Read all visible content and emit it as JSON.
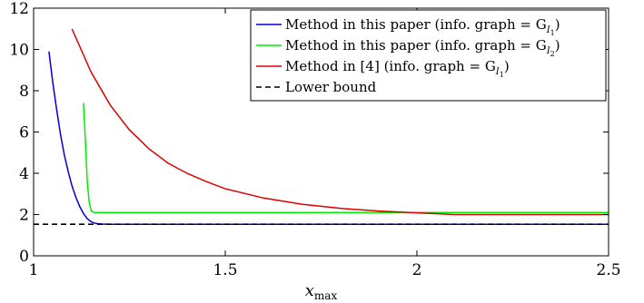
{
  "chart_data": {
    "type": "line",
    "title": "",
    "xlabel": "x",
    "xlabel_subscript": "max",
    "ylabel": "",
    "xlim": [
      1,
      2.5
    ],
    "ylim": [
      0,
      12
    ],
    "xticks": [
      1,
      1.5,
      2,
      2.5
    ],
    "xtick_labels": [
      "1",
      "1.5",
      "2",
      "2.5"
    ],
    "yticks": [
      0,
      2,
      4,
      6,
      8,
      10,
      12
    ],
    "ytick_labels": [
      "0",
      "2",
      "4",
      "6",
      "8",
      "10",
      "12"
    ],
    "grid": false,
    "legend_position": "top-right",
    "series": [
      {
        "name": "Method in this paper (info. graph = G_{I_1})",
        "legend_main": "Method in this paper (info. graph = G",
        "legend_sub": "I",
        "legend_subsub": "1",
        "legend_end": ")",
        "color": "#0000dd",
        "style": "solid",
        "x": [
          1.04,
          1.05,
          1.06,
          1.07,
          1.08,
          1.09,
          1.1,
          1.11,
          1.12,
          1.13,
          1.14,
          1.15,
          1.16,
          1.17,
          1.18,
          1.2,
          1.25,
          1.3,
          1.5,
          2.0,
          2.5
        ],
        "y": [
          9.9,
          8.4,
          7.1,
          5.9,
          4.9,
          4.1,
          3.4,
          2.85,
          2.4,
          2.05,
          1.8,
          1.65,
          1.58,
          1.55,
          1.54,
          1.53,
          1.53,
          1.53,
          1.53,
          1.53,
          1.53
        ]
      },
      {
        "name": "Method in this paper (info. graph = G_{I_2})",
        "legend_main": "Method in this paper (info. graph = G",
        "legend_sub": "I",
        "legend_subsub": "2",
        "legend_end": ")",
        "color": "#00ee00",
        "style": "solid",
        "x": [
          1.13,
          1.135,
          1.14,
          1.145,
          1.15,
          1.155,
          1.16,
          1.17,
          1.2,
          1.5,
          2.0,
          2.5
        ],
        "y": [
          7.4,
          5.6,
          3.6,
          2.6,
          2.2,
          2.12,
          2.1,
          2.1,
          2.1,
          2.1,
          2.1,
          2.1
        ]
      },
      {
        "name": "Method in [4] (info. graph = G_{I_1})",
        "legend_main": "Method in [4] (info. graph = G",
        "legend_sub": "I",
        "legend_subsub": "1",
        "legend_end": ")",
        "color": "#dd0000",
        "style": "solid",
        "x": [
          1.1,
          1.15,
          1.2,
          1.25,
          1.3,
          1.35,
          1.4,
          1.45,
          1.5,
          1.6,
          1.7,
          1.8,
          1.9,
          2.0,
          2.1,
          2.2,
          2.3,
          2.4,
          2.5
        ],
        "y": [
          11.0,
          8.9,
          7.3,
          6.1,
          5.2,
          4.5,
          4.0,
          3.6,
          3.25,
          2.8,
          2.5,
          2.3,
          2.17,
          2.08,
          2.0,
          2.0,
          2.0,
          2.0,
          2.0
        ]
      },
      {
        "name": "Lower bound",
        "legend_main": "Lower bound",
        "legend_sub": "",
        "legend_subsub": "",
        "legend_end": "",
        "color": "#000000",
        "style": "dashed",
        "x": [
          1.0,
          2.5
        ],
        "y": [
          1.53,
          1.53
        ]
      }
    ]
  }
}
